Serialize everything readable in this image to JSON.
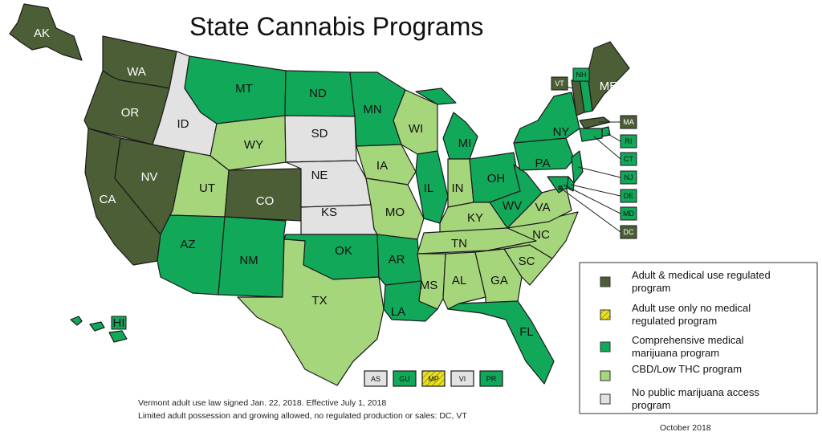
{
  "title": "State Cannabis Programs",
  "date": "October 2018",
  "notes": [
    "Vermont adult use law signed Jan. 22, 2018. Effective July 1, 2018",
    "Limited adult possession and growing allowed, no regulated production or sales: DC, VT"
  ],
  "colors": {
    "adult": "#4b5e36",
    "adult_only": "#e8e020",
    "comprehensive": "#12a85a",
    "cbd": "#a6d67c",
    "none": "#e2e2e2"
  },
  "legend": [
    {
      "key": "adult",
      "label_lines": [
        "Adult & medical use regulated",
        "program"
      ]
    },
    {
      "key": "adult_only",
      "label_lines": [
        "Adult use only no medical",
        "regulated program"
      ]
    },
    {
      "key": "comprehensive",
      "label_lines": [
        "Comprehensive medical",
        "marijuana program"
      ]
    },
    {
      "key": "cbd",
      "label_lines": [
        "CBD/Low THC program"
      ]
    },
    {
      "key": "none",
      "label_lines": [
        "No public marijuana access",
        "program"
      ]
    }
  ],
  "states": [
    {
      "abbr": "AK",
      "cat": "adult"
    },
    {
      "abbr": "HI",
      "cat": "comprehensive"
    },
    {
      "abbr": "WA",
      "cat": "adult"
    },
    {
      "abbr": "OR",
      "cat": "adult"
    },
    {
      "abbr": "CA",
      "cat": "adult"
    },
    {
      "abbr": "NV",
      "cat": "adult"
    },
    {
      "abbr": "ID",
      "cat": "none"
    },
    {
      "abbr": "MT",
      "cat": "comprehensive"
    },
    {
      "abbr": "WY",
      "cat": "cbd"
    },
    {
      "abbr": "UT",
      "cat": "cbd"
    },
    {
      "abbr": "CO",
      "cat": "adult"
    },
    {
      "abbr": "AZ",
      "cat": "comprehensive"
    },
    {
      "abbr": "NM",
      "cat": "comprehensive"
    },
    {
      "abbr": "ND",
      "cat": "comprehensive"
    },
    {
      "abbr": "SD",
      "cat": "none"
    },
    {
      "abbr": "NE",
      "cat": "none"
    },
    {
      "abbr": "KS",
      "cat": "none"
    },
    {
      "abbr": "OK",
      "cat": "comprehensive"
    },
    {
      "abbr": "TX",
      "cat": "cbd"
    },
    {
      "abbr": "MN",
      "cat": "comprehensive"
    },
    {
      "abbr": "IA",
      "cat": "cbd"
    },
    {
      "abbr": "MO",
      "cat": "cbd"
    },
    {
      "abbr": "AR",
      "cat": "comprehensive"
    },
    {
      "abbr": "LA",
      "cat": "comprehensive"
    },
    {
      "abbr": "WI",
      "cat": "cbd"
    },
    {
      "abbr": "IL",
      "cat": "comprehensive"
    },
    {
      "abbr": "MI",
      "cat": "comprehensive"
    },
    {
      "abbr": "IN",
      "cat": "cbd"
    },
    {
      "abbr": "OH",
      "cat": "comprehensive"
    },
    {
      "abbr": "KY",
      "cat": "cbd"
    },
    {
      "abbr": "TN",
      "cat": "cbd"
    },
    {
      "abbr": "MS",
      "cat": "cbd"
    },
    {
      "abbr": "AL",
      "cat": "cbd"
    },
    {
      "abbr": "GA",
      "cat": "cbd"
    },
    {
      "abbr": "FL",
      "cat": "comprehensive"
    },
    {
      "abbr": "SC",
      "cat": "cbd"
    },
    {
      "abbr": "NC",
      "cat": "cbd"
    },
    {
      "abbr": "VA",
      "cat": "cbd"
    },
    {
      "abbr": "WV",
      "cat": "comprehensive"
    },
    {
      "abbr": "PA",
      "cat": "comprehensive"
    },
    {
      "abbr": "NY",
      "cat": "comprehensive"
    },
    {
      "abbr": "VT",
      "cat": "adult"
    },
    {
      "abbr": "NH",
      "cat": "comprehensive"
    },
    {
      "abbr": "ME",
      "cat": "adult"
    },
    {
      "abbr": "MA",
      "cat": "adult"
    },
    {
      "abbr": "RI",
      "cat": "comprehensive"
    },
    {
      "abbr": "CT",
      "cat": "comprehensive"
    },
    {
      "abbr": "NJ",
      "cat": "comprehensive"
    },
    {
      "abbr": "DE",
      "cat": "comprehensive"
    },
    {
      "abbr": "MD",
      "cat": "comprehensive"
    },
    {
      "abbr": "DC",
      "cat": "adult"
    }
  ],
  "territories": [
    {
      "abbr": "AS",
      "cat": "none"
    },
    {
      "abbr": "GU",
      "cat": "comprehensive"
    },
    {
      "abbr": "MP",
      "cat": "adult_only"
    },
    {
      "abbr": "VI",
      "cat": "none"
    },
    {
      "abbr": "PR",
      "cat": "comprehensive"
    }
  ]
}
